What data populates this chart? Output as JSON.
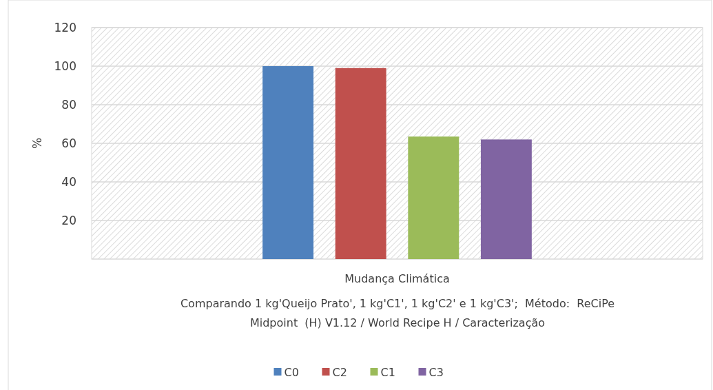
{
  "chart_data": {
    "type": "bar",
    "categories": [
      "Mudança Climática"
    ],
    "series": [
      {
        "name": "C0",
        "color": "#4f81bd",
        "values": [
          100
        ]
      },
      {
        "name": "C2",
        "color": "#c0504d",
        "values": [
          99
        ]
      },
      {
        "name": "C1",
        "color": "#9bbb59",
        "values": [
          63.5
        ]
      },
      {
        "name": "C3",
        "color": "#8064a2",
        "values": [
          62
        ]
      }
    ],
    "ylabel": "%",
    "xlabel": "Comparando 1 kg'Queijo Prato', 1 kg'C1', 1 kg'C2' e 1 kg'C3';  Método:  ReCiPe Midpoint  (H) V1.12 / World Recipe H / Caracterização",
    "ylim": [
      0,
      120
    ],
    "yticks": [
      20,
      40,
      60,
      80,
      100,
      120
    ],
    "grid": "y",
    "legend": "bottom"
  }
}
